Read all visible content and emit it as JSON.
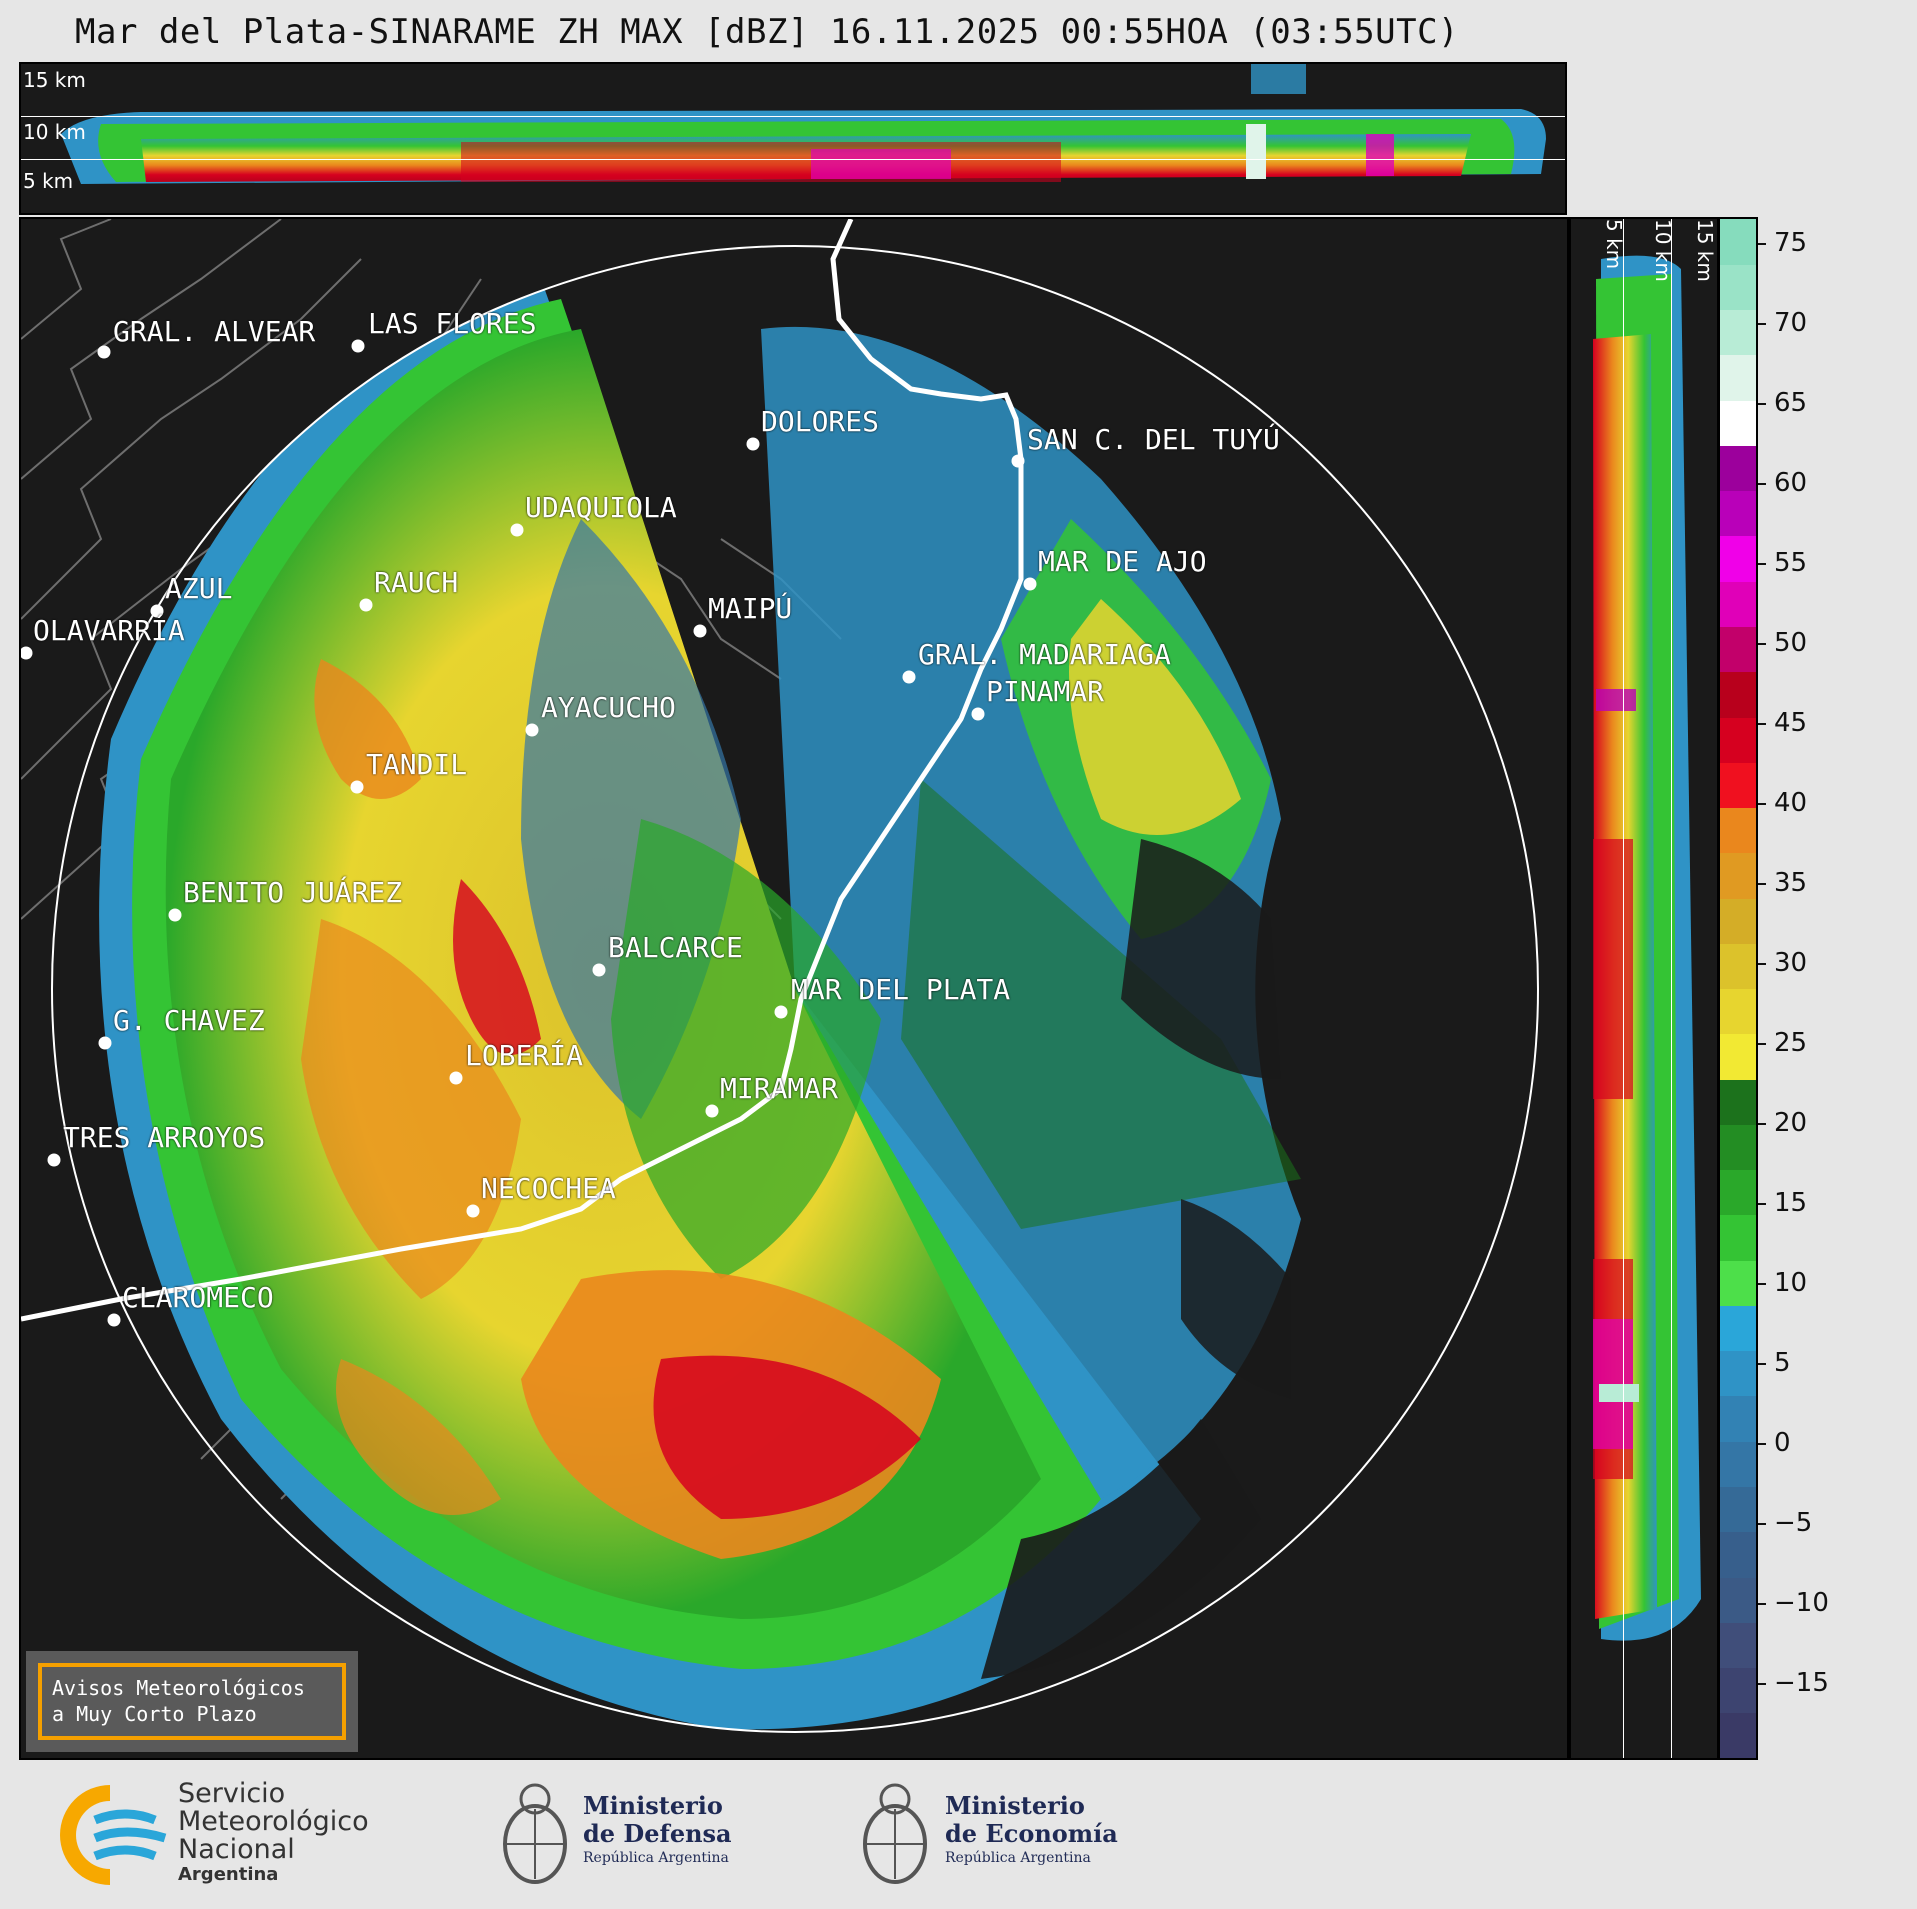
{
  "title": "Mar del Plata-SINARAME ZH MAX [dBZ] 16.11.2025 00:55HOA (03:55UTC)",
  "top_panel": {
    "altitudes": [
      "15 km",
      "10 km",
      "5 km"
    ]
  },
  "side_panel": {
    "altitudes": [
      "5 km",
      "10 km",
      "15 km"
    ]
  },
  "colorbar": {
    "unit": "dBZ",
    "ticks": [
      "75",
      "70",
      "65",
      "60",
      "55",
      "50",
      "45",
      "40",
      "35",
      "30",
      "25",
      "20",
      "15",
      "10",
      "5",
      "0",
      "−5",
      "−10",
      "−15"
    ],
    "colors": [
      "#3a3a66",
      "#3d4470",
      "#404e7a",
      "#3b5a86",
      "#375f8c",
      "#356a97",
      "#3476a6",
      "#3282b4",
      "#2f93c6",
      "#2aa6d9",
      "#4ddf4a",
      "#34c434",
      "#2aa82a",
      "#238d23",
      "#1c721c",
      "#f2e933",
      "#e7d52f",
      "#dcc22b",
      "#d4ad27",
      "#e09a22",
      "#ea871d",
      "#f0101f",
      "#d6001f",
      "#b8001c",
      "#c2006a",
      "#e000b8",
      "#f000e8",
      "#b900b9",
      "#9c009c",
      "#ffffff",
      "#e0f4ea",
      "#b8ecd6",
      "#9ae3c7",
      "#86dcbd"
    ]
  },
  "cities": [
    {
      "name": "GRAL. ALVEAR"
    },
    {
      "name": "LAS FLORES"
    },
    {
      "name": "DOLORES"
    },
    {
      "name": "SAN C. DEL TUYÚ"
    },
    {
      "name": "UDAQUIOLA"
    },
    {
      "name": "MAR DE AJO"
    },
    {
      "name": "AZUL"
    },
    {
      "name": "RAUCH"
    },
    {
      "name": "MAIPÚ"
    },
    {
      "name": "OLAVARRÍA"
    },
    {
      "name": "GRAL. MADARIAGA"
    },
    {
      "name": "PINAMAR"
    },
    {
      "name": "AYACUCHO"
    },
    {
      "name": "TANDIL"
    },
    {
      "name": "BENITO JUÁREZ"
    },
    {
      "name": "BALCARCE"
    },
    {
      "name": "MAR DEL PLATA"
    },
    {
      "name": "G. CHAVEZ"
    },
    {
      "name": "LOBERÍA"
    },
    {
      "name": "MIRAMAR"
    },
    {
      "name": "TRES ARROYOS"
    },
    {
      "name": "NECOCHEA"
    },
    {
      "name": "CLAROMECO"
    }
  ],
  "warning_box": {
    "line1": "Avisos Meteorológicos",
    "line2": "a Muy Corto Plazo"
  },
  "footer": {
    "smn": {
      "line1": "Servicio",
      "line2": "Meteorológico",
      "line3": "Nacional",
      "line4": "Argentina"
    },
    "defensa": {
      "line1": "Ministerio",
      "line2": "de Defensa",
      "line3": "República Argentina"
    },
    "economia": {
      "line1": "Ministerio",
      "line2": "de Economía",
      "line3": "República Argentina"
    }
  }
}
